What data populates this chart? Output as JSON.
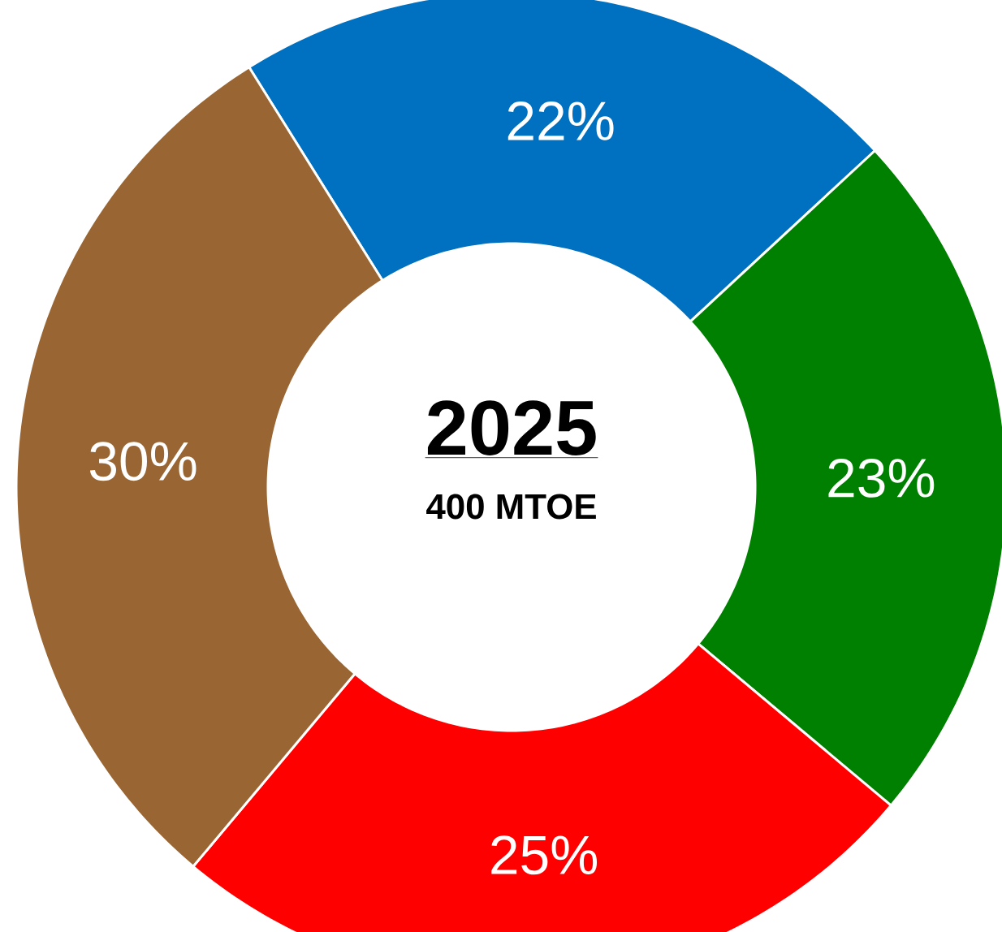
{
  "chart_data": {
    "type": "donut",
    "title": "2025",
    "subtitle": "400 MTOE",
    "categories": [
      null,
      null,
      null,
      null
    ],
    "values": [
      22,
      23,
      25,
      30
    ],
    "value_labels": [
      "22%",
      "23%",
      "25%",
      "30%"
    ],
    "colors": [
      "#0070c0",
      "#008000",
      "#ff0000",
      "#996633"
    ]
  }
}
